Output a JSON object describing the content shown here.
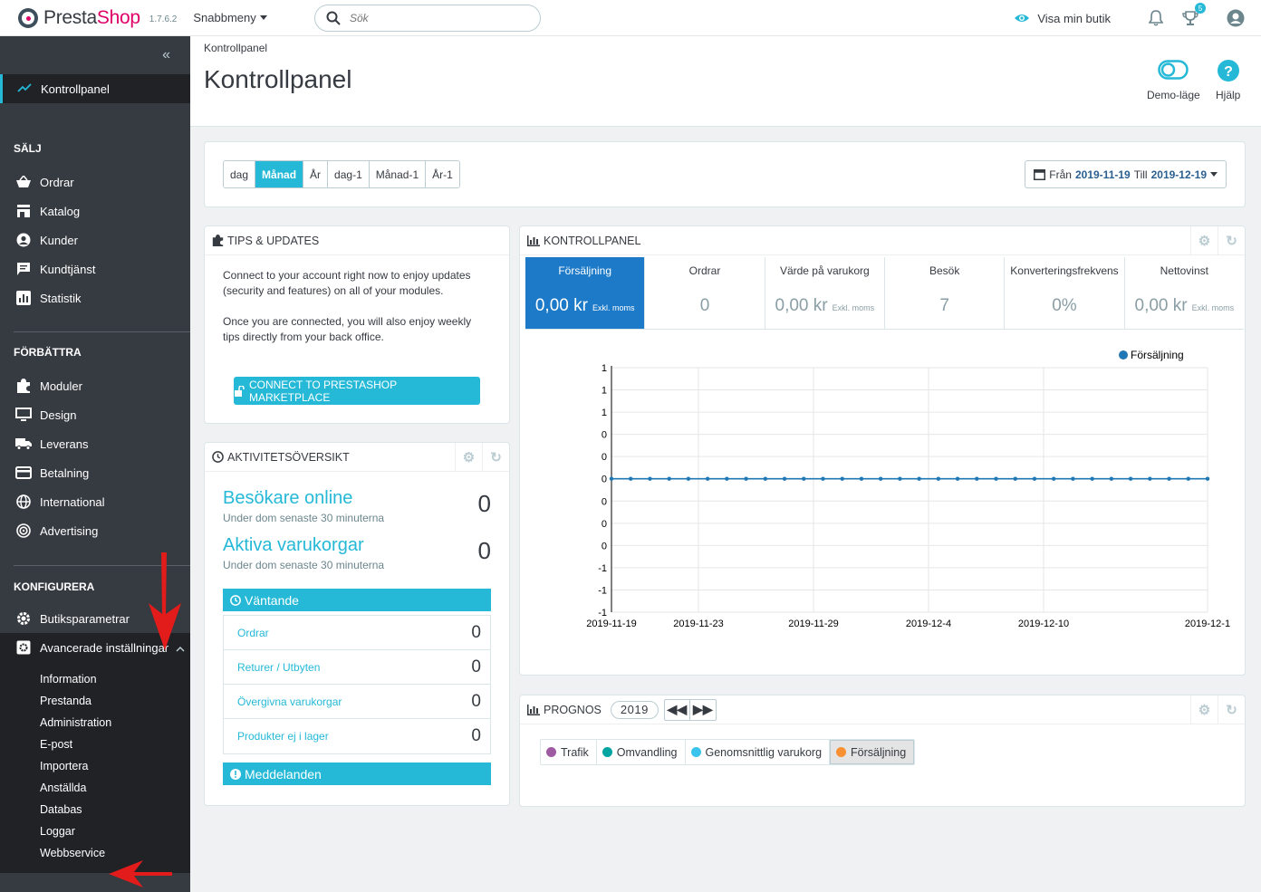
{
  "header": {
    "logo_presta": "Presta",
    "logo_shop": "Shop",
    "version": "1.7.6.2",
    "quick_access": "Snabbmeny",
    "search_placeholder": "Sök",
    "view_shop": "Visa min butik",
    "notifications_badge": "5"
  },
  "sidebar": {
    "active_item": "Kontrollpanel",
    "sections": [
      {
        "title": "SÄLJ",
        "items": [
          "Ordrar",
          "Katalog",
          "Kunder",
          "Kundtjänst",
          "Statistik"
        ]
      },
      {
        "title": "FÖRBÄTTRA",
        "items": [
          "Moduler",
          "Design",
          "Leverans",
          "Betalning",
          "International",
          "Advertising"
        ]
      },
      {
        "title": "KONFIGURERA",
        "items": [
          "Butiksparametrar",
          "Avancerade inställningar"
        ]
      }
    ],
    "sub_items": [
      "Information",
      "Prestanda",
      "Administration",
      "E-post",
      "Importera",
      "Anställda",
      "Databas",
      "Loggar",
      "Webbservice"
    ]
  },
  "page": {
    "breadcrumb": "Kontrollpanel",
    "title": "Kontrollpanel",
    "demo_mode": "Demo-läge",
    "help": "Hjälp"
  },
  "period": {
    "buttons": [
      "dag",
      "Månad",
      "År",
      "dag-1",
      "Månad-1",
      "År-1"
    ],
    "active": "Månad",
    "from_label": "Från",
    "from": "2019-11-19",
    "to_label": "Till",
    "to": "2019-12-19"
  },
  "tips": {
    "title": "TIPS & UPDATES",
    "p1": "Connect to your account right now to enjoy updates (security and features) on all of your modules.",
    "p2": "Once you are connected, you will also enjoy weekly tips directly from your back office.",
    "button": "CONNECT TO PRESTASHOP MARKETPLACE"
  },
  "activity": {
    "title": "AKTIVITETSÖVERSIKT",
    "visitors_label": "Besökare online",
    "visitors_sub": "Under dom senaste 30 minuterna",
    "visitors_value": "0",
    "carts_label": "Aktiva varukorgar",
    "carts_sub": "Under dom senaste 30 minuterna",
    "carts_value": "0",
    "pending_title": "Väntande",
    "pending": [
      {
        "label": "Ordrar",
        "value": "0"
      },
      {
        "label": "Returer / Utbyten",
        "value": "0"
      },
      {
        "label": "Övergivna varukorgar",
        "value": "0"
      },
      {
        "label": "Produkter ej i lager",
        "value": "0"
      }
    ],
    "messages_title": "Meddelanden"
  },
  "dashboard": {
    "title": "KONTROLLPANEL",
    "kpis": [
      {
        "label": "Försäljning",
        "value": "0,00 kr",
        "note": "Exkl. moms"
      },
      {
        "label": "Ordrar",
        "value": "0",
        "note": ""
      },
      {
        "label": "Värde på varukorg",
        "value": "0,00 kr",
        "note": "Exkl. moms"
      },
      {
        "label": "Besök",
        "value": "7",
        "note": ""
      },
      {
        "label": "Konverteringsfrekvens",
        "value": "0%",
        "note": ""
      },
      {
        "label": "Nettovinst",
        "value": "0,00 kr",
        "note": "Exkl. moms"
      }
    ],
    "active_kpi": "Försäljning"
  },
  "forecast": {
    "title": "PROGNOS",
    "year": "2019",
    "legend": [
      {
        "label": "Trafik",
        "color": "#9e5ba1"
      },
      {
        "label": "Omvandling",
        "color": "#00a4a1"
      },
      {
        "label": "Genomsnittlig varukorg",
        "color": "#3ac4ed"
      },
      {
        "label": "Försäljning",
        "color": "#f99031"
      }
    ],
    "active": "Försäljning"
  },
  "chart_data": {
    "type": "line",
    "title": "",
    "xlabel": "",
    "ylabel": "",
    "series": [
      {
        "name": "Försäljning",
        "color": "#1f77b4",
        "values": [
          0,
          0,
          0,
          0,
          0,
          0,
          0,
          0,
          0,
          0,
          0,
          0,
          0,
          0,
          0,
          0,
          0,
          0,
          0,
          0,
          0,
          0,
          0,
          0,
          0,
          0,
          0,
          0,
          0,
          0,
          0,
          0
        ]
      }
    ],
    "x_tick_labels": [
      "2019-11-19",
      "2019-11-23",
      "2019-11-29",
      "2019-12-4",
      "2019-12-10",
      "2019-12-1"
    ],
    "y_tick_labels": [
      "1",
      "1",
      "1",
      "0",
      "0",
      "0",
      "0",
      "0",
      "0",
      "-1",
      "-1",
      "-1"
    ],
    "ylim": [
      -1,
      1
    ],
    "grid": true,
    "legend_position": "top-right"
  }
}
